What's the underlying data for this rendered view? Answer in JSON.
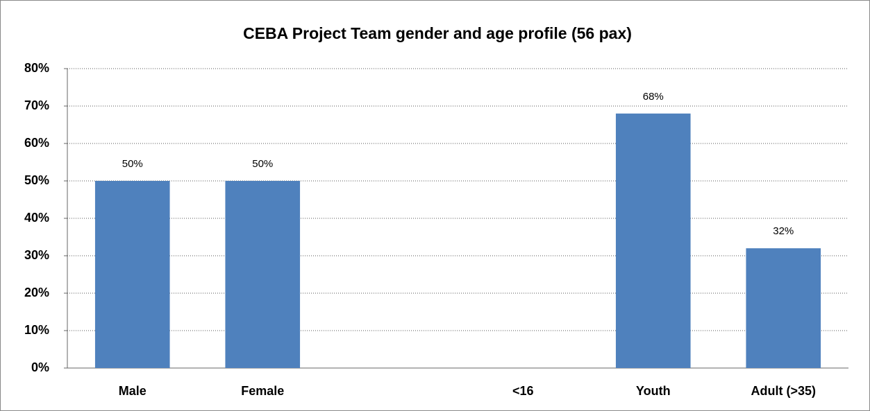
{
  "chart_data": {
    "type": "bar",
    "title": "CEBA Project Team gender and age profile (56 pax)",
    "categories": [
      "Male",
      "Female",
      null,
      "<16",
      "Youth",
      "Adult (>35)"
    ],
    "values": [
      50,
      50,
      null,
      null,
      68,
      32
    ],
    "value_labels": [
      "50%",
      "50%",
      null,
      null,
      "68%",
      "32%"
    ],
    "color": "#4f81bd",
    "ylim": [
      0,
      80
    ],
    "yticks": [
      {
        "value": 0,
        "label": "0%"
      },
      {
        "value": 10,
        "label": "10%"
      },
      {
        "value": 20,
        "label": "20%"
      },
      {
        "value": 30,
        "label": "30%"
      },
      {
        "value": 40,
        "label": "40%"
      },
      {
        "value": 50,
        "label": "50%"
      },
      {
        "value": 60,
        "label": "60%"
      },
      {
        "value": 70,
        "label": "70%"
      },
      {
        "value": 80,
        "label": "80%"
      }
    ],
    "grid": true
  }
}
